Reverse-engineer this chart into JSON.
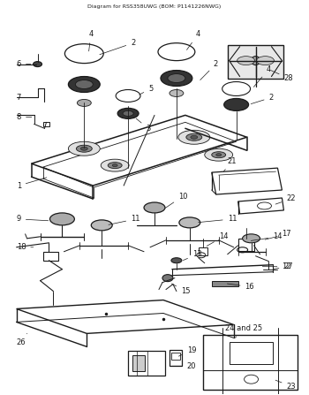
{
  "title": "Diagram for RSS358UWG (BOM: P1141226NWG)",
  "bg_color": "#ffffff",
  "lc": "#1a1a1a",
  "figsize": [
    3.5,
    4.47
  ],
  "dpi": 100
}
